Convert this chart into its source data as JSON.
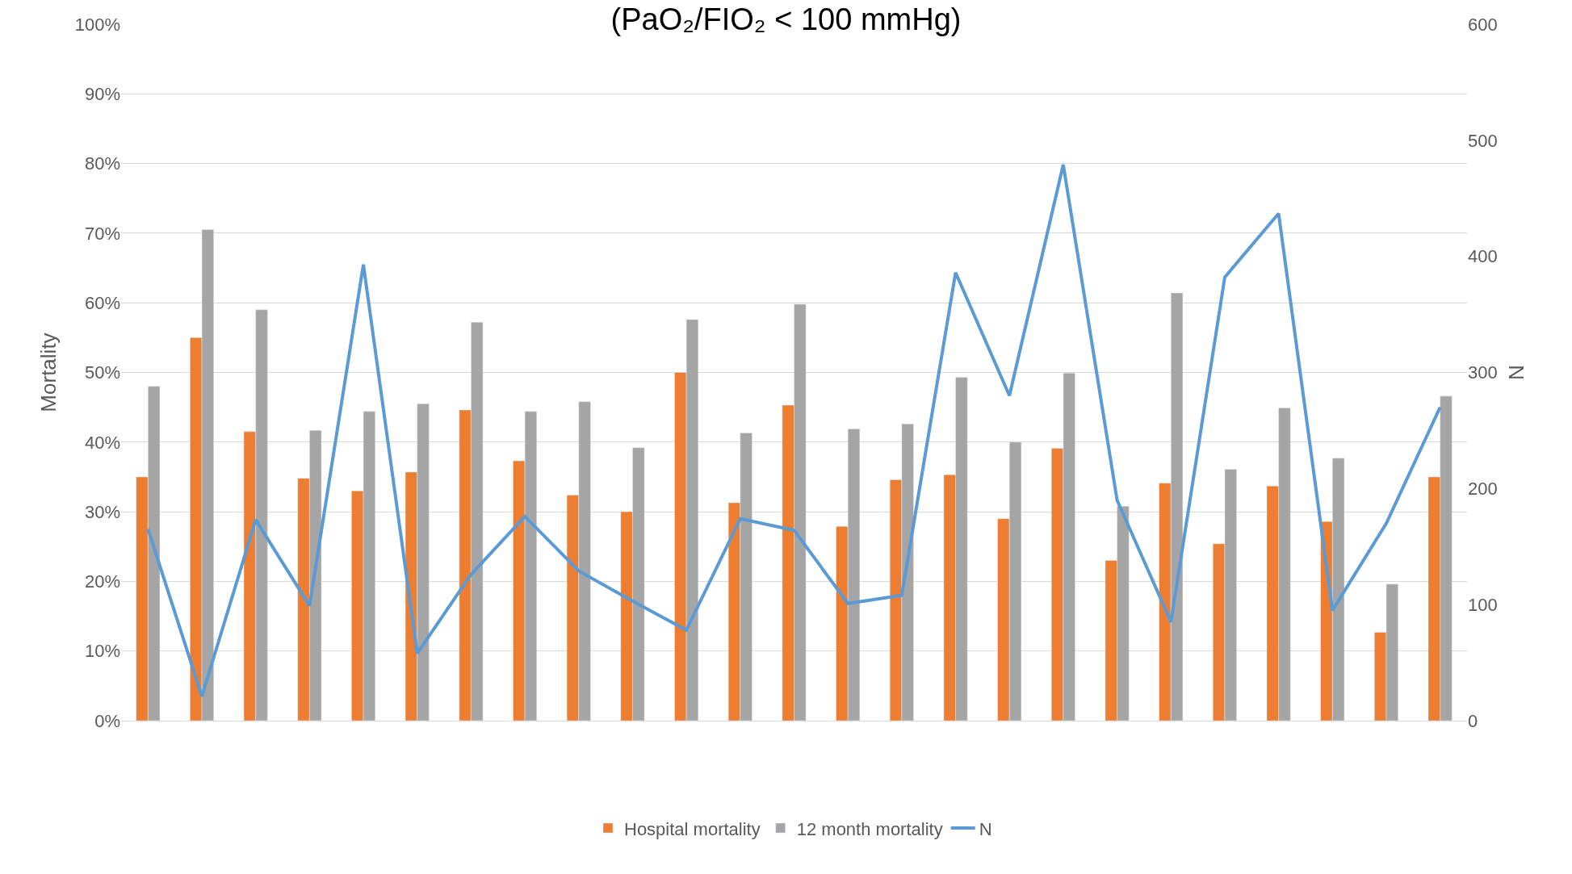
{
  "chart_data": {
    "type": "bar",
    "title": "(PaO₂/FIO₂ < 100 mmHg)",
    "ylabel": "Mortality",
    "y2label": "N",
    "categories": [
      null,
      null,
      null,
      null,
      null,
      null,
      null,
      null,
      null,
      null,
      null,
      null,
      null,
      null,
      null,
      null,
      null,
      null,
      null,
      null,
      null,
      null,
      null,
      null,
      null
    ],
    "series": [
      {
        "name": "Hospital mortality",
        "color": "#ed7d31",
        "values": [
          35,
          55,
          41.5,
          34.8,
          33,
          35.7,
          44.6,
          37.3,
          32.4,
          30,
          50,
          31.3,
          45.3,
          27.9,
          34.6,
          35.3,
          29,
          39.1,
          23,
          34.1,
          25.4,
          33.7,
          28.6,
          12.7,
          35
        ]
      },
      {
        "name": "12 month mortality",
        "color": "#a5a5a5",
        "values": [
          48,
          70.5,
          59,
          41.7,
          44.4,
          45.5,
          57.2,
          44.4,
          45.8,
          39.2,
          57.6,
          41.3,
          59.8,
          41.9,
          42.6,
          49.3,
          40,
          49.9,
          30.8,
          61.4,
          36.1,
          44.9,
          37.7,
          19.6,
          46.6
        ]
      },
      {
        "name": "N",
        "type": "line",
        "axis": "y2",
        "color": "#5b9bd5",
        "values": [
          165,
          21,
          173,
          99,
          393,
          58,
          126,
          176,
          129,
          103,
          78,
          174,
          164,
          101,
          108,
          386,
          280,
          479,
          190,
          85,
          382,
          437,
          95,
          170,
          270
        ]
      }
    ],
    "ylim": [
      0,
      100
    ],
    "yticks": [
      {
        "value": 0,
        "label": "0%"
      },
      {
        "value": 10,
        "label": "10%"
      },
      {
        "value": 20,
        "label": "20%"
      },
      {
        "value": 30,
        "label": "30%"
      },
      {
        "value": 40,
        "label": "40%"
      },
      {
        "value": 50,
        "label": "50%"
      },
      {
        "value": 60,
        "label": "60%"
      },
      {
        "value": 70,
        "label": "70%"
      },
      {
        "value": 80,
        "label": "80%"
      },
      {
        "value": 90,
        "label": "90%"
      },
      {
        "value": 100,
        "label": "100%"
      }
    ],
    "y2lim": [
      0,
      600
    ],
    "y2ticks": [
      0,
      100,
      200,
      300,
      400,
      500,
      600
    ],
    "grid": "y",
    "legend": "bottom",
    "marker": "none",
    "line_style": "solid"
  }
}
